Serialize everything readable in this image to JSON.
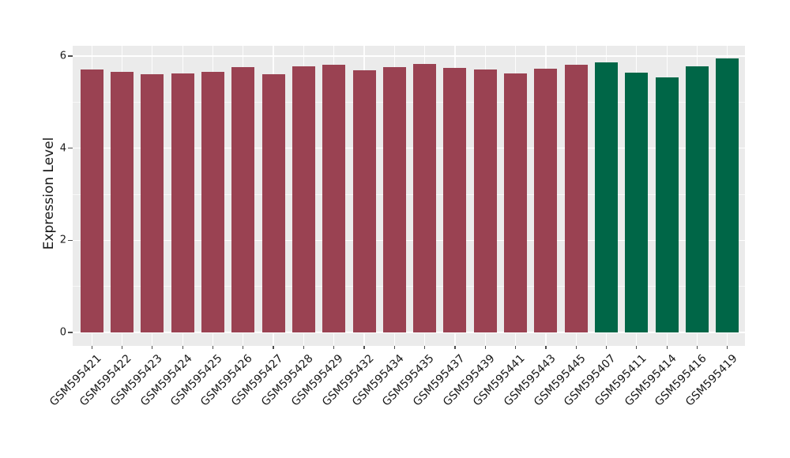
{
  "figure": {
    "background_color": "#ffffff",
    "panel_background_color": "#ebebeb",
    "gridline_color": "#ffffff",
    "text_color": "#1a1a1a",
    "tick_color": "#4d4d4d"
  },
  "chart_data": {
    "type": "bar",
    "title": "",
    "xlabel": "",
    "ylabel": "Expression Level",
    "ylim": [
      0,
      6.23
    ],
    "yticks_major": [
      0,
      2,
      4,
      6
    ],
    "yticks_minor": [
      1,
      3,
      5
    ],
    "grid": true,
    "legend_position": "none",
    "x_tick_rotation_deg": 45,
    "group_colors": {
      "group1": "#9A4252",
      "group2": "#006647"
    },
    "bars": [
      {
        "label": "GSM595421",
        "value": 5.71,
        "group": "group1"
      },
      {
        "label": "GSM595422",
        "value": 5.65,
        "group": "group1"
      },
      {
        "label": "GSM595423",
        "value": 5.6,
        "group": "group1"
      },
      {
        "label": "GSM595424",
        "value": 5.63,
        "group": "group1"
      },
      {
        "label": "GSM595425",
        "value": 5.65,
        "group": "group1"
      },
      {
        "label": "GSM595426",
        "value": 5.76,
        "group": "group1"
      },
      {
        "label": "GSM595427",
        "value": 5.61,
        "group": "group1"
      },
      {
        "label": "GSM595428",
        "value": 5.78,
        "group": "group1"
      },
      {
        "label": "GSM595429",
        "value": 5.82,
        "group": "group1"
      },
      {
        "label": "GSM595432",
        "value": 5.7,
        "group": "group1"
      },
      {
        "label": "GSM595434",
        "value": 5.76,
        "group": "group1"
      },
      {
        "label": "GSM595435",
        "value": 5.83,
        "group": "group1"
      },
      {
        "label": "GSM595437",
        "value": 5.74,
        "group": "group1"
      },
      {
        "label": "GSM595439",
        "value": 5.71,
        "group": "group1"
      },
      {
        "label": "GSM595441",
        "value": 5.62,
        "group": "group1"
      },
      {
        "label": "GSM595443",
        "value": 5.73,
        "group": "group1"
      },
      {
        "label": "GSM595445",
        "value": 5.81,
        "group": "group1"
      },
      {
        "label": "GSM595407",
        "value": 5.87,
        "group": "group2"
      },
      {
        "label": "GSM595411",
        "value": 5.64,
        "group": "group2"
      },
      {
        "label": "GSM595414",
        "value": 5.54,
        "group": "group2"
      },
      {
        "label": "GSM595416",
        "value": 5.77,
        "group": "group2"
      },
      {
        "label": "GSM595419",
        "value": 5.95,
        "group": "group2"
      }
    ]
  }
}
